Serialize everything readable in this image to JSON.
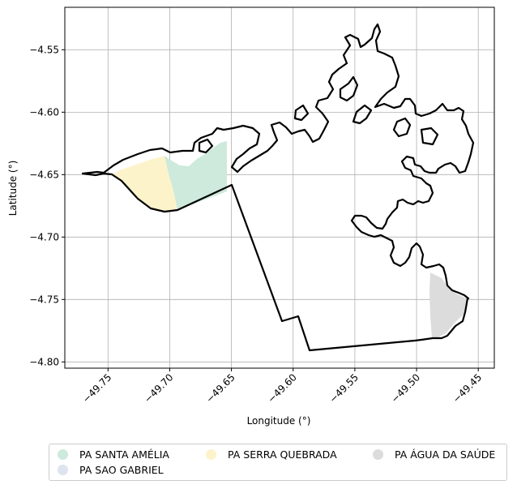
{
  "chart_data": {
    "type": "map",
    "title": "",
    "xlabel": "Longitude (°)",
    "ylabel": "Latitude (°)",
    "xlim": [
      -49.785,
      -49.437
    ],
    "ylim": [
      -4.805,
      -4.516
    ],
    "grid": true,
    "x_ticks": [
      -49.75,
      -49.7,
      -49.65,
      -49.6,
      -49.55,
      -49.5,
      -49.45
    ],
    "x_tick_labels": [
      "−49.75",
      "−49.70",
      "−49.65",
      "−49.60",
      "−49.55",
      "−49.50",
      "−49.45"
    ],
    "y_ticks": [
      -4.55,
      -4.6,
      -4.65,
      -4.7,
      -4.75,
      -4.8
    ],
    "y_tick_labels": [
      "−4.55",
      "−4.60",
      "−4.65",
      "−4.70",
      "−4.75",
      "−4.80"
    ],
    "legend_placement": "below",
    "legend": [
      {
        "label": "PA SANTA AMÉLIA",
        "color": "#cdeadc"
      },
      {
        "label": "PA SAO GABRIEL",
        "color": "#dde3ef"
      },
      {
        "label": "PA SERRA QUEBRADA",
        "color": "#fdf3cb"
      },
      {
        "label": "PA ÁGUA DA SAÚDE",
        "color": "#dcdcdc"
      }
    ],
    "outline_color": "#000000"
  }
}
